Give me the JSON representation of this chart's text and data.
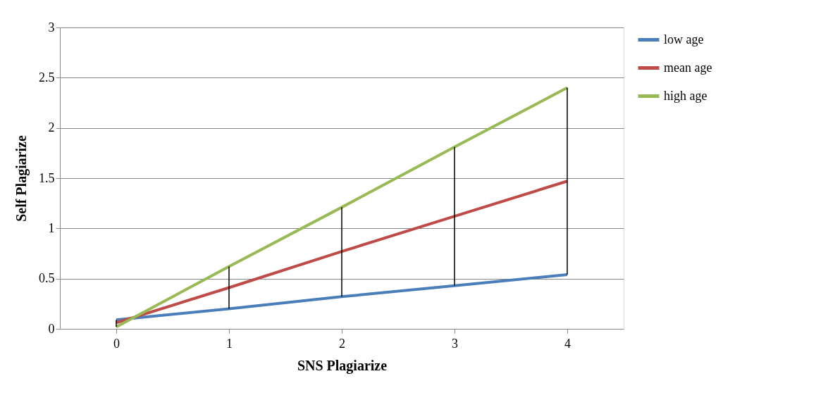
{
  "chart_data": {
    "type": "line",
    "xlabel": "SNS Plagiarize",
    "ylabel": "Self Plagiarize",
    "categories": [
      "0",
      "1",
      "2",
      "3",
      "4"
    ],
    "series": [
      {
        "name": "low age",
        "color": "#4a7ebb",
        "values": [
          0.09,
          0.2,
          0.32,
          0.43,
          0.54
        ]
      },
      {
        "name": "mean age",
        "color": "#be4b48",
        "values": [
          0.06,
          0.41,
          0.77,
          1.12,
          1.47
        ]
      },
      {
        "name": "high age",
        "color": "#98b954",
        "values": [
          0.02,
          0.62,
          1.21,
          1.81,
          2.4
        ],
        "errors": [
          [
            0.02,
            0.09
          ],
          [
            0.2,
            0.62
          ],
          [
            0.32,
            1.21
          ],
          [
            0.43,
            1.81
          ],
          [
            0.54,
            2.4
          ]
        ]
      }
    ],
    "ylim": [
      0,
      3
    ],
    "yticks": [
      0,
      0.5,
      1,
      1.5,
      2,
      2.5,
      3
    ],
    "grid": "y",
    "legend": "right",
    "marker": "none",
    "line_style": "solid"
  }
}
